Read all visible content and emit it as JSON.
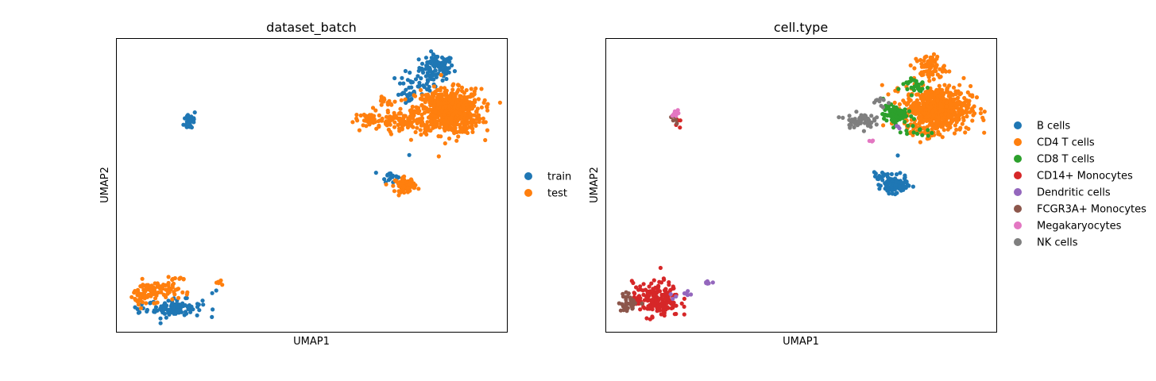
{
  "chart_data": [
    {
      "type": "scatter",
      "title": "dataset_batch",
      "xlabel": "UMAP1",
      "ylabel": "UMAP2",
      "grid": false,
      "legend_position": "right",
      "xlim": [
        0,
        100
      ],
      "ylim": [
        0,
        100
      ],
      "series": [
        {
          "name": "train",
          "color": "#1f77b4",
          "clusters": [
            {
              "cx": 82,
              "cy": 90,
              "sx": 2.2,
              "sy": 2.2,
              "n": 90
            },
            {
              "cx": 77,
              "cy": 84,
              "sx": 2.5,
              "sy": 2.2,
              "n": 35
            },
            {
              "cx": 74,
              "cy": 80,
              "sx": 1.5,
              "sy": 1.2,
              "n": 15
            },
            {
              "cx": 19,
              "cy": 72,
              "sx": 0.8,
              "sy": 1.8,
              "n": 30
            },
            {
              "cx": 70,
              "cy": 53,
              "sx": 1.0,
              "sy": 1.0,
              "n": 18
            },
            {
              "cx": 15,
              "cy": 8,
              "sx": 3.5,
              "sy": 1.5,
              "n": 95
            },
            {
              "cx": 6,
              "cy": 8,
              "sx": 0.6,
              "sy": 0.6,
              "n": 5
            },
            {
              "cx": 25,
              "cy": 14,
              "sx": 0.4,
              "sy": 0.4,
              "n": 2
            },
            {
              "cx": 75,
              "cy": 60,
              "sx": 0.2,
              "sy": 0.2,
              "n": 1
            }
          ]
        },
        {
          "name": "test",
          "color": "#ff7f0e",
          "clusters": [
            {
              "cx": 85,
              "cy": 75,
              "sx": 4.2,
              "sy": 3.8,
              "n": 650
            },
            {
              "cx": 72,
              "cy": 72,
              "sx": 3.5,
              "sy": 1.5,
              "n": 90
            },
            {
              "cx": 65,
              "cy": 72,
              "sx": 2.0,
              "sy": 1.2,
              "n": 30
            },
            {
              "cx": 70,
              "cy": 78,
              "sx": 1.5,
              "sy": 1.0,
              "n": 15
            },
            {
              "cx": 74,
              "cy": 50,
              "sx": 1.3,
              "sy": 1.2,
              "n": 80
            },
            {
              "cx": 10,
              "cy": 14,
              "sx": 3.0,
              "sy": 1.8,
              "n": 90
            },
            {
              "cx": 6,
              "cy": 11,
              "sx": 1.0,
              "sy": 1.2,
              "n": 20
            },
            {
              "cx": 26.5,
              "cy": 17,
              "sx": 0.6,
              "sy": 0.4,
              "n": 6
            },
            {
              "cx": 17,
              "cy": 18,
              "sx": 1.0,
              "sy": 0.5,
              "n": 8
            }
          ]
        }
      ]
    },
    {
      "type": "scatter",
      "title": "cell.type",
      "xlabel": "UMAP1",
      "ylabel": "UMAP2",
      "grid": false,
      "legend_position": "right",
      "xlim": [
        0,
        100
      ],
      "ylim": [
        0,
        100
      ],
      "series": [
        {
          "name": "B cells",
          "color": "#1f77b4",
          "clusters": [
            {
              "cx": 74,
              "cy": 50,
              "sx": 1.6,
              "sy": 1.4,
              "n": 110
            },
            {
              "cx": 70,
              "cy": 53,
              "sx": 1.0,
              "sy": 0.8,
              "n": 15
            },
            {
              "cx": 75,
              "cy": 60,
              "sx": 0.2,
              "sy": 0.2,
              "n": 1
            }
          ]
        },
        {
          "name": "CD4 T cells",
          "color": "#ff7f0e",
          "clusters": [
            {
              "cx": 85,
              "cy": 76,
              "sx": 4.2,
              "sy": 3.8,
              "n": 620
            },
            {
              "cx": 83,
              "cy": 90,
              "sx": 2.0,
              "sy": 2.2,
              "n": 70
            },
            {
              "cx": 82,
              "cy": 68,
              "sx": 1.5,
              "sy": 1.0,
              "n": 15
            }
          ]
        },
        {
          "name": "CD8 T cells",
          "color": "#2ca02c",
          "clusters": [
            {
              "cx": 74,
              "cy": 74,
              "sx": 1.5,
              "sy": 1.5,
              "n": 100
            },
            {
              "cx": 79,
              "cy": 84,
              "sx": 2.0,
              "sy": 1.5,
              "n": 30
            },
            {
              "cx": 80,
              "cy": 68,
              "sx": 2.0,
              "sy": 1.0,
              "n": 12
            }
          ]
        },
        {
          "name": "CD14+ Monocytes",
          "color": "#d62728",
          "clusters": [
            {
              "cx": 13,
              "cy": 11,
              "sx": 3.0,
              "sy": 3.0,
              "n": 190
            },
            {
              "cx": 19,
              "cy": 72,
              "sx": 0.6,
              "sy": 0.8,
              "n": 5
            }
          ]
        },
        {
          "name": "Dendritic cells",
          "color": "#9467bd",
          "clusters": [
            {
              "cx": 26.5,
              "cy": 17,
              "sx": 0.6,
              "sy": 0.4,
              "n": 6
            },
            {
              "cx": 21,
              "cy": 13,
              "sx": 0.8,
              "sy": 0.6,
              "n": 6
            },
            {
              "cx": 17,
              "cy": 12,
              "sx": 0.6,
              "sy": 0.6,
              "n": 3
            },
            {
              "cx": 75,
              "cy": 70,
              "sx": 0.6,
              "sy": 0.6,
              "n": 3
            }
          ]
        },
        {
          "name": "FCGR3A+ Monocytes",
          "color": "#8c564b",
          "clusters": [
            {
              "cx": 6,
              "cy": 10,
              "sx": 1.3,
              "sy": 1.6,
              "n": 35
            },
            {
              "cx": 18,
              "cy": 72,
              "sx": 0.6,
              "sy": 0.8,
              "n": 5
            }
          ]
        },
        {
          "name": "Megakaryocytes",
          "color": "#e377c2",
          "clusters": [
            {
              "cx": 18,
              "cy": 74,
              "sx": 0.5,
              "sy": 0.8,
              "n": 8
            },
            {
              "cx": 68,
              "cy": 65,
              "sx": 0.5,
              "sy": 0.3,
              "n": 4
            }
          ]
        },
        {
          "name": "NK cells",
          "color": "#7f7f7f",
          "clusters": [
            {
              "cx": 65,
              "cy": 72,
              "sx": 1.8,
              "sy": 1.2,
              "n": 65
            },
            {
              "cx": 70,
              "cy": 78,
              "sx": 1.0,
              "sy": 1.0,
              "n": 10
            }
          ]
        }
      ]
    }
  ]
}
